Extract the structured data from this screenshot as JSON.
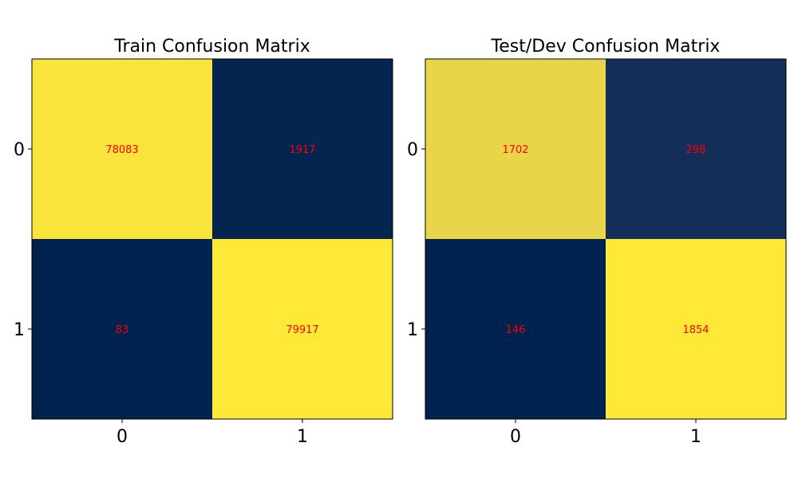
{
  "chart_data": [
    {
      "type": "heatmap",
      "title": "Train Confusion Matrix",
      "x_tick_labels": [
        "0",
        "1"
      ],
      "y_tick_labels": [
        "0",
        "1"
      ],
      "values": [
        [
          78083,
          1917
        ],
        [
          83,
          79917
        ]
      ],
      "colormap": "cividis",
      "annotation_color": "#ff0000"
    },
    {
      "type": "heatmap",
      "title": "Test/Dev Confusion Matrix",
      "x_tick_labels": [
        "0",
        "1"
      ],
      "y_tick_labels": [
        "0",
        "1"
      ],
      "values": [
        [
          1702,
          298
        ],
        [
          146,
          1854
        ]
      ],
      "colormap": "cividis",
      "annotation_color": "#ff0000"
    }
  ]
}
